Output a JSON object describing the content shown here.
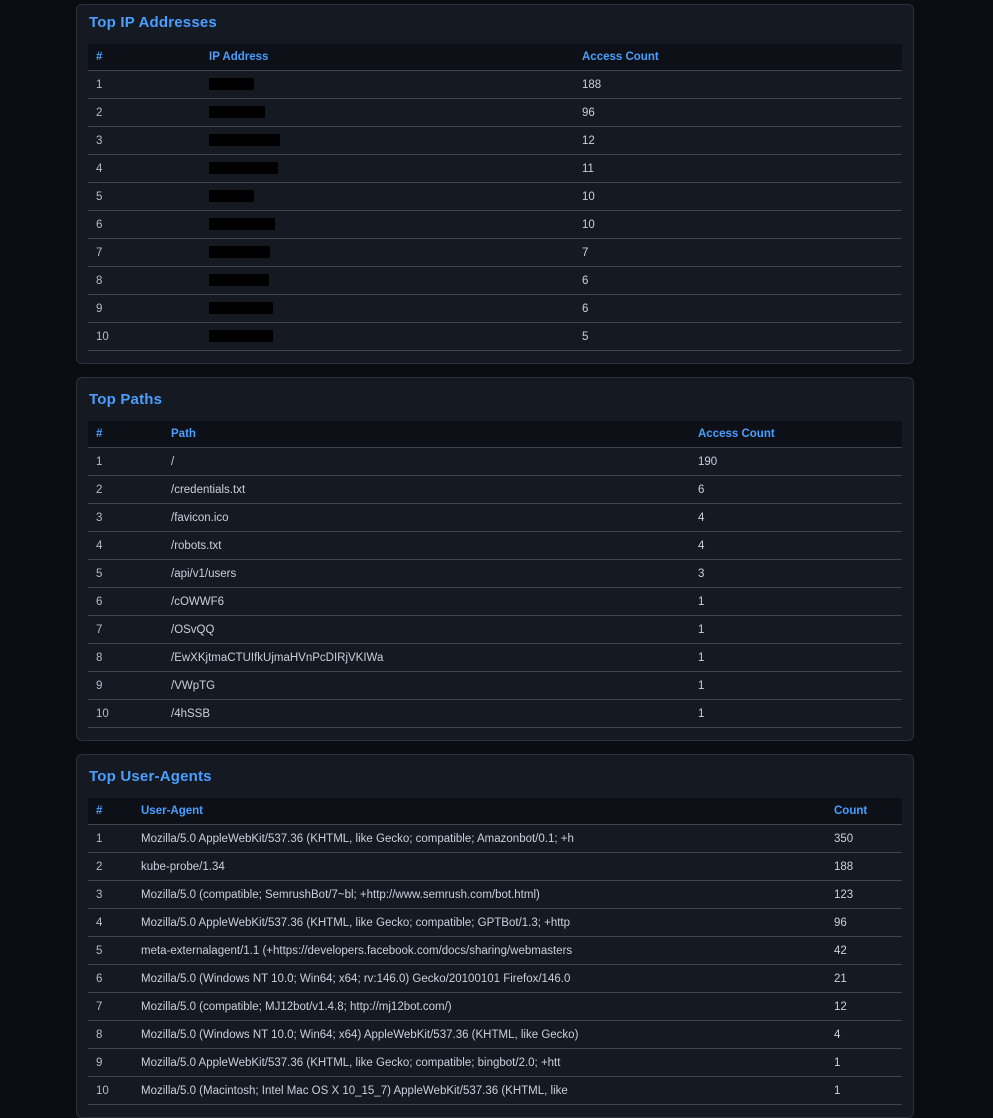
{
  "theme": {
    "page_bg": "#0b0d12",
    "panel_bg": "#151922",
    "panel_border": "#2c313b",
    "header_bg": "#0d1017",
    "row_border": "#3f4550",
    "accent": "#4a9eff",
    "text": "#c9d0d9",
    "redaction": "#000000"
  },
  "panels": [
    {
      "id": "top-ip-addresses",
      "title": "Top IP Addresses",
      "columns": [
        "#",
        "IP Address",
        "Access Count"
      ],
      "rows": [
        {
          "rank": "1",
          "value": "",
          "redacted": true,
          "redaction_width": 45,
          "count": "188"
        },
        {
          "rank": "2",
          "value": "",
          "redacted": true,
          "redaction_width": 56,
          "count": "96"
        },
        {
          "rank": "3",
          "value": "",
          "redacted": true,
          "redaction_width": 71,
          "count": "12"
        },
        {
          "rank": "4",
          "value": "",
          "redacted": true,
          "redaction_width": 69,
          "count": "11"
        },
        {
          "rank": "5",
          "value": "",
          "redacted": true,
          "redaction_width": 45,
          "count": "10"
        },
        {
          "rank": "6",
          "value": "",
          "redacted": true,
          "redaction_width": 66,
          "count": "10"
        },
        {
          "rank": "7",
          "value": "",
          "redacted": true,
          "redaction_width": 61,
          "count": "7"
        },
        {
          "rank": "8",
          "value": "",
          "redacted": true,
          "redaction_width": 60,
          "count": "6"
        },
        {
          "rank": "9",
          "value": "",
          "redacted": true,
          "redaction_width": 64,
          "count": "6"
        },
        {
          "rank": "10",
          "value": "",
          "redacted": true,
          "redaction_width": 64,
          "count": "5"
        }
      ]
    },
    {
      "id": "top-paths",
      "title": "Top Paths",
      "columns": [
        "#",
        "Path",
        "Access Count"
      ],
      "rows": [
        {
          "rank": "1",
          "value": "/",
          "count": "190"
        },
        {
          "rank": "2",
          "value": "/credentials.txt",
          "count": "6"
        },
        {
          "rank": "3",
          "value": "/favicon.ico",
          "count": "4"
        },
        {
          "rank": "4",
          "value": "/robots.txt",
          "count": "4"
        },
        {
          "rank": "5",
          "value": "/api/v1/users",
          "count": "3"
        },
        {
          "rank": "6",
          "value": "/cOWWF6",
          "count": "1"
        },
        {
          "rank": "7",
          "value": "/OSvQQ",
          "count": "1"
        },
        {
          "rank": "8",
          "value": "/EwXKjtmaCTUIfkUjmaHVnPcDIRjVKIWa",
          "count": "1"
        },
        {
          "rank": "9",
          "value": "/VWpTG",
          "count": "1"
        },
        {
          "rank": "10",
          "value": "/4hSSB",
          "count": "1"
        }
      ]
    },
    {
      "id": "top-user-agents",
      "title": "Top User-Agents",
      "columns": [
        "#",
        "User-Agent",
        "Count"
      ],
      "rows": [
        {
          "rank": "1",
          "value": "Mozilla/5.0 AppleWebKit/537.36 (KHTML, like Gecko; compatible; Amazonbot/0.1; +h",
          "count": "350"
        },
        {
          "rank": "2",
          "value": "kube-probe/1.34",
          "count": "188"
        },
        {
          "rank": "3",
          "value": "Mozilla/5.0 (compatible; SemrushBot/7~bl; +http://www.semrush.com/bot.html)",
          "count": "123"
        },
        {
          "rank": "4",
          "value": "Mozilla/5.0 AppleWebKit/537.36 (KHTML, like Gecko; compatible; GPTBot/1.3; +http",
          "count": "96"
        },
        {
          "rank": "5",
          "value": "meta-externalagent/1.1 (+https://developers.facebook.com/docs/sharing/webmasters",
          "count": "42"
        },
        {
          "rank": "6",
          "value": "Mozilla/5.0 (Windows NT 10.0; Win64; x64; rv:146.0) Gecko/20100101 Firefox/146.0",
          "count": "21"
        },
        {
          "rank": "7",
          "value": "Mozilla/5.0 (compatible; MJ12bot/v1.4.8; http://mj12bot.com/)",
          "count": "12"
        },
        {
          "rank": "8",
          "value": "Mozilla/5.0 (Windows NT 10.0; Win64; x64) AppleWebKit/537.36 (KHTML, like Gecko)",
          "count": "4"
        },
        {
          "rank": "9",
          "value": "Mozilla/5.0 AppleWebKit/537.36 (KHTML, like Gecko; compatible; bingbot/2.0; +htt",
          "count": "1"
        },
        {
          "rank": "10",
          "value": "Mozilla/5.0 (Macintosh; Intel Mac OS X 10_15_7) AppleWebKit/537.36 (KHTML, like",
          "count": "1"
        }
      ]
    }
  ]
}
